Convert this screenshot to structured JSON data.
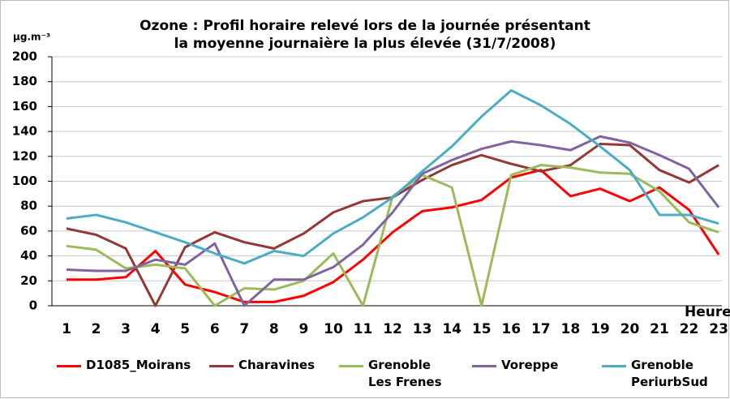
{
  "chart_data": {
    "type": "line",
    "title": "Ozone : Profil horaire relevé lors de la journée présentant\nla moyenne journaière la plus élevée (31/7/2008)",
    "y_label": "µg.m⁻³",
    "x_label": "Heures",
    "categories": [
      "1",
      "2",
      "3",
      "4",
      "5",
      "6",
      "7",
      "8",
      "9",
      "10",
      "11",
      "12",
      "13",
      "14",
      "15",
      "16",
      "17",
      "18",
      "19",
      "20",
      "21",
      "22",
      "23"
    ],
    "series": [
      {
        "name": "D1085_Moirans",
        "color": "#ff0000",
        "values": [
          21,
          21,
          23,
          44,
          17,
          11,
          3,
          3,
          8,
          19,
          37,
          59,
          76,
          79,
          85,
          103,
          109,
          88,
          94,
          84,
          95,
          77,
          41
        ]
      },
      {
        "name": "Charavines",
        "color": "#953735",
        "values": [
          62,
          57,
          46,
          0,
          47,
          59,
          51,
          46,
          58,
          75,
          84,
          87,
          101,
          113,
          121,
          114,
          108,
          113,
          130,
          129,
          109,
          99,
          113
        ]
      },
      {
        "name": "Grenoble\nLes Frenes",
        "color": "#9bbb59",
        "values": [
          48,
          45,
          30,
          33,
          30,
          0,
          14,
          13,
          20,
          42,
          0,
          88,
          105,
          95,
          0,
          105,
          113,
          111,
          107,
          106,
          92,
          67,
          59
        ]
      },
      {
        "name": "Voreppe",
        "color": "#8064a2",
        "values": [
          29,
          28,
          28,
          37,
          33,
          50,
          0,
          21,
          21,
          31,
          49,
          75,
          106,
          117,
          126,
          132,
          129,
          125,
          136,
          131,
          121,
          110,
          79
        ]
      },
      {
        "name": "Grenoble\nPeriurbSud",
        "color": "#4bacc6",
        "values": [
          70,
          73,
          67,
          59,
          51,
          42,
          34,
          44,
          40,
          58,
          71,
          87,
          108,
          128,
          152,
          173,
          161,
          146,
          128,
          109,
          73,
          73,
          66
        ]
      }
    ],
    "ylim": [
      0,
      200
    ],
    "yticks": [
      0,
      20,
      40,
      60,
      80,
      100,
      120,
      140,
      160,
      180,
      200
    ],
    "grid": true
  }
}
